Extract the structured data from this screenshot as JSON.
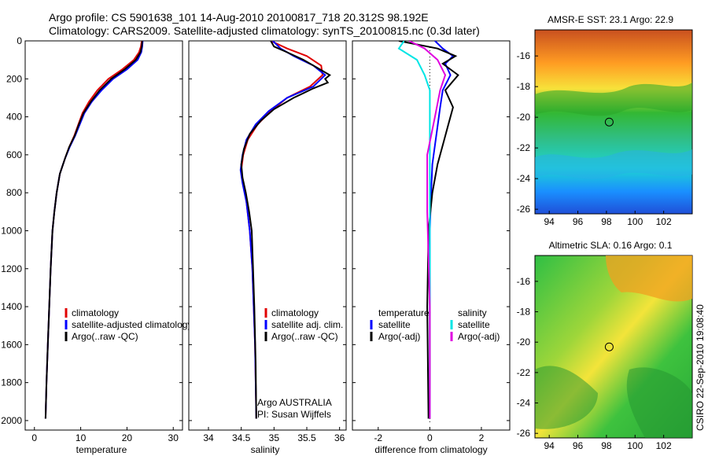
{
  "title": {
    "line1": "Argo profile: CS 5901638_101 14-Aug-2010 20100817_718 20.312S 98.192E",
    "line2": "Climatology: CARS2009. Satellite-adjusted climatology: synTS_20100815.nc (0.3d later)"
  },
  "side_label": "CSIRO 22-Sep-2010 19:08:40",
  "colors": {
    "clim": "#e00000",
    "sat": "#0000ff",
    "argo": "#000000",
    "sat_sal": "#00e5e5",
    "argo_sal": "#e000e0"
  },
  "chart_data": [
    {
      "type": "line",
      "xlabel": "temperature",
      "ylabel": "",
      "xlim": [
        -2,
        32
      ],
      "ylim": [
        2050,
        0
      ],
      "y_reversed": true,
      "x_ticks": [
        0,
        10,
        20,
        30
      ],
      "y_ticks": [
        0,
        200,
        400,
        600,
        800,
        1000,
        1200,
        1400,
        1600,
        1800,
        2000
      ],
      "legend": [
        "climatology",
        "satellite-adjusted climatology",
        "Argo(..raw -QC)"
      ],
      "series": [
        {
          "name": "climatology",
          "color": "clim",
          "x": [
            23.2,
            23.0,
            22.6,
            21.5,
            19.0,
            16.0,
            13.6,
            11.8,
            10.4,
            9.5,
            8.6,
            7.5,
            6.6,
            5.5,
            4.8,
            4.3,
            3.9,
            3.5,
            3.2,
            2.9,
            2.6,
            2.4
          ],
          "y": [
            0,
            30,
            60,
            100,
            150,
            200,
            260,
            320,
            380,
            440,
            500,
            560,
            620,
            700,
            800,
            900,
            1000,
            1200,
            1400,
            1600,
            1800,
            1990
          ]
        },
        {
          "name": "satellite-adjusted climatology",
          "color": "sat",
          "x": [
            23.4,
            23.3,
            23.1,
            22.3,
            20.0,
            17.0,
            14.5,
            12.4,
            10.8,
            9.8,
            8.8,
            7.6,
            6.6,
            5.5,
            4.8,
            4.3,
            3.9,
            3.5,
            3.2,
            2.9,
            2.6,
            2.4
          ],
          "y": [
            0,
            30,
            60,
            100,
            150,
            200,
            260,
            320,
            380,
            440,
            500,
            560,
            620,
            700,
            800,
            900,
            1000,
            1200,
            1400,
            1600,
            1800,
            1990
          ]
        },
        {
          "name": "Argo(..raw -QC)",
          "color": "argo",
          "x": [
            23.3,
            23.2,
            22.9,
            21.9,
            19.5,
            16.6,
            14.1,
            12.2,
            10.6,
            9.6,
            8.7,
            7.5,
            6.6,
            5.5,
            4.8,
            4.3,
            3.9,
            3.5,
            3.2,
            2.9,
            2.6,
            2.4
          ],
          "y": [
            0,
            30,
            60,
            100,
            150,
            200,
            260,
            320,
            380,
            440,
            500,
            560,
            620,
            700,
            800,
            900,
            1000,
            1200,
            1400,
            1600,
            1800,
            1990
          ]
        }
      ]
    },
    {
      "type": "line",
      "xlabel": "salinity",
      "ylabel": "",
      "xlim": [
        33.7,
        36.1
      ],
      "ylim": [
        2050,
        0
      ],
      "y_reversed": true,
      "x_ticks": [
        34,
        34.5,
        35,
        35.5,
        36
      ],
      "legend": [
        "climatology",
        "satellite adj. clim.",
        "Argo(..raw -QC)"
      ],
      "annotation": [
        "Argo AUSTRALIA",
        "PI: Susan Wijffels"
      ],
      "series": [
        {
          "name": "climatology",
          "color": "clim",
          "x": [
            34.95,
            35.2,
            35.5,
            35.72,
            35.74,
            35.55,
            35.2,
            34.95,
            34.75,
            34.6,
            34.53,
            34.5,
            34.53,
            34.58,
            34.63,
            34.67,
            34.69,
            34.71,
            34.72,
            34.73
          ],
          "y": [
            0,
            40,
            80,
            130,
            180,
            240,
            300,
            370,
            440,
            520,
            600,
            680,
            750,
            850,
            1000,
            1200,
            1400,
            1600,
            1800,
            1990
          ]
        },
        {
          "name": "satellite adj. clim.",
          "color": "sat",
          "x": [
            34.98,
            35.1,
            35.3,
            35.6,
            35.78,
            35.6,
            35.2,
            34.92,
            34.72,
            34.58,
            34.52,
            34.49,
            34.52,
            34.58,
            34.63,
            34.67,
            34.69,
            34.71,
            34.72,
            34.73
          ],
          "y": [
            0,
            40,
            80,
            130,
            180,
            240,
            300,
            370,
            440,
            520,
            600,
            680,
            750,
            850,
            1000,
            1200,
            1400,
            1600,
            1800,
            1990
          ]
        },
        {
          "name": "Argo(..raw -QC)",
          "color": "argo",
          "x": [
            34.95,
            35.0,
            35.2,
            35.45,
            35.65,
            35.85,
            35.78,
            35.82,
            35.6,
            35.3,
            35.0,
            34.8,
            34.63,
            34.54,
            34.5,
            34.52,
            34.57,
            34.62,
            34.66,
            34.68,
            34.7,
            34.72,
            34.73
          ],
          "y": [
            0,
            30,
            60,
            100,
            140,
            180,
            200,
            220,
            250,
            300,
            360,
            420,
            490,
            570,
            650,
            720,
            800,
            900,
            1000,
            1200,
            1400,
            1700,
            1990
          ]
        }
      ]
    },
    {
      "type": "line",
      "xlabel": "difference from climatology",
      "ylabel": "",
      "xlim": [
        -3,
        3.1
      ],
      "ylim": [
        2050,
        0
      ],
      "y_reversed": true,
      "x_ticks": [
        -2,
        0,
        2
      ],
      "legend_left": [
        "temperature",
        "satellite",
        "Argo(-adj)"
      ],
      "legend_right": [
        "salinity",
        "satellite",
        "Argo(-adj)"
      ],
      "series": [
        {
          "name": "temperature satellite",
          "color": "sat",
          "x": [
            0.2,
            0.5,
            0.9,
            0.6,
            0.8,
            0.5,
            0.4,
            0.3,
            0.2,
            0.1,
            0.05,
            0.0,
            0.0,
            0.0
          ],
          "y": [
            0,
            40,
            80,
            120,
            180,
            260,
            350,
            450,
            550,
            650,
            800,
            1000,
            1400,
            1990
          ]
        },
        {
          "name": "temperature Argo(-adj)",
          "color": "argo",
          "x": [
            -1.2,
            0.3,
            1.0,
            0.5,
            1.1,
            0.6,
            0.9,
            0.7,
            0.5,
            0.3,
            0.1,
            -0.05,
            -0.1,
            -0.05
          ],
          "y": [
            0,
            40,
            80,
            120,
            180,
            260,
            350,
            450,
            550,
            650,
            800,
            1000,
            1400,
            1990
          ]
        },
        {
          "name": "salinity satellite",
          "color": "sat_sal",
          "x": [
            -1.0,
            -1.2,
            -0.5,
            -0.2,
            0.0,
            0.0,
            0.0,
            0.0,
            0.0,
            0.0
          ],
          "y": [
            0,
            40,
            100,
            180,
            260,
            400,
            600,
            900,
            1400,
            1990
          ]
        },
        {
          "name": "salinity Argo(-adj)",
          "color": "argo_sal",
          "x": [
            -0.8,
            -0.2,
            0.3,
            0.6,
            0.4,
            0.2,
            -0.1,
            -0.1,
            0.0,
            0.0
          ],
          "y": [
            0,
            40,
            100,
            180,
            260,
            400,
            600,
            900,
            1400,
            1990
          ]
        }
      ]
    },
    {
      "type": "heatmap",
      "title": "AMSR-E SST: 23.1 Argo: 22.9",
      "xlim": [
        93,
        104
      ],
      "ylim": [
        -26.3,
        -14.3
      ],
      "x_ticks": [
        94,
        96,
        98,
        100,
        102
      ],
      "y_ticks": [
        -16,
        -18,
        -20,
        -22,
        -24,
        -26
      ],
      "marker": [
        98.192,
        -20.312
      ]
    },
    {
      "type": "heatmap",
      "title": "Altimetric SLA: 0.16 Argo: 0.1",
      "xlim": [
        93,
        104
      ],
      "ylim": [
        -26.3,
        -14.3
      ],
      "x_ticks": [
        94,
        96,
        98,
        100,
        102
      ],
      "y_ticks": [
        -16,
        -18,
        -20,
        -22,
        -24,
        -26
      ],
      "marker": [
        98.192,
        -20.312
      ]
    }
  ]
}
